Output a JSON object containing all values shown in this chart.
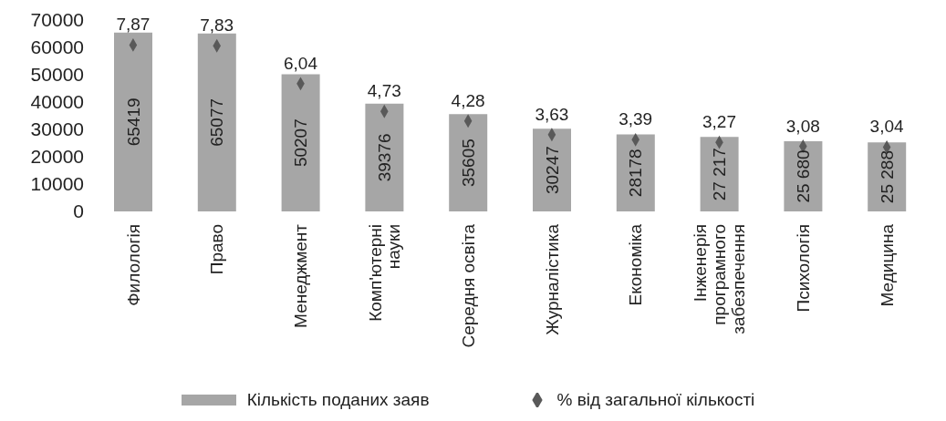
{
  "chart_data": {
    "type": "bar",
    "categories": [
      "Филологія",
      "Право",
      "Менеджмент",
      "Комп'ютерні науки",
      "Середня освіта",
      "Журналістика",
      "Економіка",
      "Інженерія програмного забезпечення",
      "Психологія",
      "Медицина"
    ],
    "series": [
      {
        "name": "Кількість поданих заяв",
        "color": "#a6a6a6",
        "values": [
          65419,
          65077,
          50207,
          39376,
          35605,
          30247,
          28178,
          27217,
          25680,
          25288
        ],
        "value_labels": [
          "65419",
          "65077",
          "50207",
          "39376",
          "35605",
          "30247",
          "28178",
          "27 217",
          "25 680",
          "25 288"
        ]
      },
      {
        "name": "% від загальної кількості",
        "type": "scatter",
        "axis": "y2",
        "color": "#595959",
        "values": [
          7.87,
          7.83,
          6.04,
          4.73,
          4.28,
          3.63,
          3.39,
          3.27,
          3.08,
          3.04
        ],
        "value_labels": [
          "7,87",
          "7,83",
          "6,04",
          "4,73",
          "4,28",
          "3,63",
          "3,39",
          "3,27",
          "3,08",
          "3,04"
        ]
      }
    ],
    "ylim": [
      0,
      70000
    ],
    "yticks": [
      0,
      10000,
      20000,
      30000,
      40000,
      50000,
      60000,
      70000
    ],
    "grid": false,
    "legend": "bottom",
    "marker": "diamond"
  }
}
